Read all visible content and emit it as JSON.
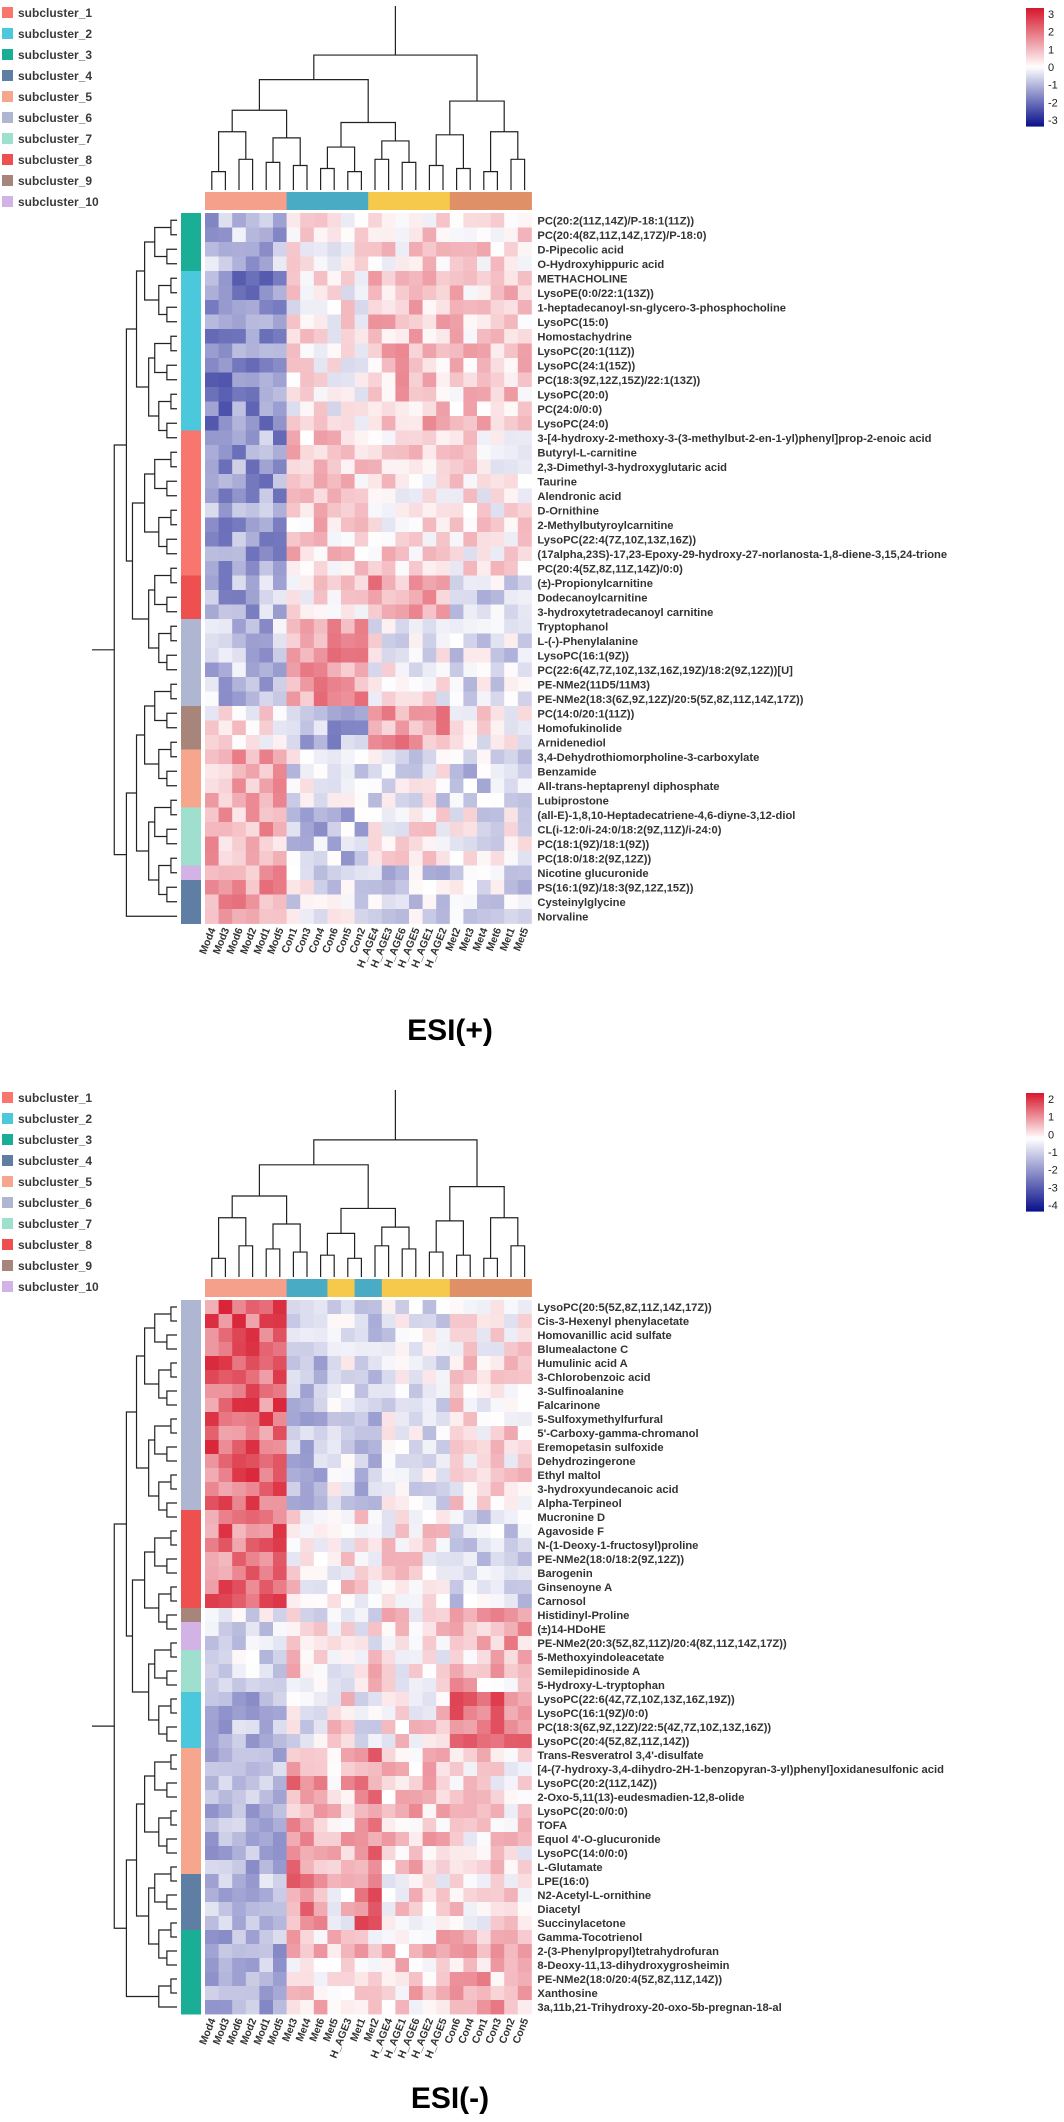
{
  "colors": {
    "subclusters": [
      "#F8766D",
      "#4BC8DB",
      "#1AAE97",
      "#5E7FA3",
      "#F5A68D",
      "#AEB6D2",
      "#9EE0CD",
      "#EE4F4F",
      "#A8857A",
      "#D3B3E6"
    ],
    "groups": [
      "#F5A08A",
      "#4AABC5",
      "#F6C94C",
      "#E09066"
    ],
    "scale_low": "#0B128C",
    "scale_mid": "#FFFFFF",
    "scale_high": "#D7162A"
  },
  "chart_data": [
    {
      "type": "heatmap",
      "title": "ESI(+)",
      "legend": {
        "entries": [
          "subcluster_1",
          "subcluster_2",
          "subcluster_3",
          "subcluster_4",
          "subcluster_5",
          "subcluster_6",
          "subcluster_7",
          "subcluster_8",
          "subcluster_9",
          "subcluster_10"
        ],
        "placement": "top-left"
      },
      "color_scale": {
        "range": [
          -3,
          3
        ],
        "ticks": [
          "3",
          "2",
          "1",
          "0",
          "-1",
          "-2",
          "-3"
        ],
        "placement": "top-right"
      },
      "columns": [
        "Mod4",
        "Mod3",
        "Mod6",
        "Mod2",
        "Mod1",
        "Mod5",
        "Con1",
        "Con3",
        "Con4",
        "Con6",
        "Con5",
        "Con2",
        "H_AGE4",
        "H_AGE3",
        "H_AGE6",
        "H_AGE5",
        "H_AGE1",
        "H_AGE2",
        "Met2",
        "Met3",
        "Met4",
        "Met6",
        "Met1",
        "Met5"
      ],
      "column_groups": [
        0,
        0,
        0,
        0,
        0,
        0,
        1,
        1,
        1,
        1,
        1,
        1,
        2,
        2,
        2,
        2,
        2,
        2,
        3,
        3,
        3,
        3,
        3,
        3
      ],
      "rows": [
        "PC(20:2(11Z,14Z)/P-18:1(11Z))",
        "PC(20:4(8Z,11Z,14Z,17Z)/P-18:0)",
        "D-Pipecolic acid",
        "O-Hydroxyhippuric acid",
        "METHACHOLINE",
        "LysoPE(0:0/22:1(13Z))",
        "1-heptadecanoyl-sn-glycero-3-phosphocholine",
        "LysoPC(15:0)",
        "Homostachydrine",
        "LysoPC(20:1(11Z))",
        "LysoPC(24:1(15Z))",
        "PC(18:3(9Z,12Z,15Z)/22:1(13Z))",
        "LysoPC(20:0)",
        "PC(24:0/0:0)",
        "LysoPC(24:0)",
        "3-[4-hydroxy-2-methoxy-3-(3-methylbut-2-en-1-yl)phenyl]prop-2-enoic acid",
        "Butyryl-L-carnitine",
        "2,3-Dimethyl-3-hydroxyglutaric acid",
        "Taurine",
        "Alendronic acid",
        "D-Ornithine",
        "2-Methylbutyroylcarnitine",
        "LysoPC(22:4(7Z,10Z,13Z,16Z))",
        "(17alpha,23S)-17,23-Epoxy-29-hydroxy-27-norlanosta-1,8-diene-3,15,24-trione",
        "PC(20:4(5Z,8Z,11Z,14Z)/0:0)",
        "(±)-Propionylcarnitine",
        "Dodecanoylcarnitine",
        "3-hydroxytetradecanoyl carnitine",
        "Tryptophanol",
        "L-(-)-Phenylalanine",
        "LysoPC(16:1(9Z))",
        "PC(22:6(4Z,7Z,10Z,13Z,16Z,19Z)/18:2(9Z,12Z))[U]",
        "PE-NMe2(11D5/11M3)",
        "PE-NMe2(18:3(6Z,9Z,12Z)/20:5(5Z,8Z,11Z,14Z,17Z))",
        "PC(14:0/20:1(11Z))",
        "Homofukinolide",
        "Arnidenediol",
        "3,4-Dehydrothiomorpholine-3-carboxylate",
        "Benzamide",
        "All-trans-heptaprenyl diphosphate",
        "Lubiprostone",
        "(all-E)-1,8,10-Heptadecatriene-4,6-diyne-3,12-diol",
        "CL(i-12:0/i-24:0/18:2(9Z,11Z)/i-24:0)",
        "PC(18:1(9Z)/18:1(9Z))",
        "PC(18:0/18:2(9Z,12Z))",
        "Nicotine glucuronide",
        "PS(16:1(9Z)/18:3(9Z,12Z,15Z))",
        "Cysteinylglycine",
        "Norvaline"
      ],
      "row_subclusters": [
        3,
        3,
        3,
        3,
        2,
        2,
        2,
        2,
        2,
        2,
        2,
        2,
        2,
        2,
        2,
        1,
        1,
        1,
        1,
        1,
        1,
        1,
        1,
        1,
        1,
        8,
        8,
        8,
        6,
        6,
        6,
        6,
        6,
        6,
        9,
        9,
        9,
        5,
        5,
        5,
        5,
        7,
        7,
        7,
        7,
        10,
        4,
        4,
        4
      ],
      "row_patterns": [
        [
          -0.8,
          0.2,
          0.4,
          0.5
        ],
        [
          -0.8,
          0.2,
          0.4,
          0.5
        ],
        [
          -0.8,
          0.2,
          0.4,
          0.5
        ],
        [
          -0.8,
          0.2,
          0.4,
          0.5
        ],
        [
          -1.5,
          0.2,
          0.8,
          0.6
        ],
        [
          -1.5,
          0.2,
          0.8,
          0.6
        ],
        [
          -1.5,
          0.2,
          0.8,
          0.6
        ],
        [
          -1.5,
          0.2,
          0.8,
          0.6
        ],
        [
          -1.5,
          0.2,
          0.8,
          0.6
        ],
        [
          -1.5,
          0.2,
          0.8,
          0.6
        ],
        [
          -1.5,
          0.2,
          0.8,
          0.6
        ],
        [
          -1.5,
          0.2,
          0.8,
          0.6
        ],
        [
          -1.5,
          0.2,
          0.8,
          0.6
        ],
        [
          -1.5,
          0.2,
          0.8,
          0.6
        ],
        [
          -1.5,
          0.2,
          0.8,
          0.6
        ],
        [
          -1.2,
          0.6,
          0.4,
          0.3
        ],
        [
          -1.2,
          0.6,
          0.4,
          0.3
        ],
        [
          -1.2,
          0.6,
          0.4,
          0.3
        ],
        [
          -1.2,
          0.6,
          0.4,
          0.3
        ],
        [
          -1.2,
          0.6,
          0.4,
          0.3
        ],
        [
          -1.2,
          0.6,
          0.4,
          0.3
        ],
        [
          -1.2,
          0.6,
          0.4,
          0.3
        ],
        [
          -1.2,
          0.6,
          0.4,
          0.3
        ],
        [
          -1.2,
          0.6,
          0.4,
          0.3
        ],
        [
          -1.2,
          0.6,
          0.4,
          0.3
        ],
        [
          -1.0,
          0.4,
          1.2,
          -0.3
        ],
        [
          -1.0,
          0.4,
          1.2,
          -0.3
        ],
        [
          -1.0,
          0.4,
          1.2,
          -0.3
        ],
        [
          -0.8,
          1.3,
          0.0,
          -0.4
        ],
        [
          -0.8,
          1.3,
          0.0,
          -0.4
        ],
        [
          -0.8,
          1.3,
          0.0,
          -0.4
        ],
        [
          -0.8,
          1.3,
          0.0,
          -0.4
        ],
        [
          -0.8,
          1.3,
          0.0,
          -0.4
        ],
        [
          -0.8,
          1.3,
          0.0,
          -0.4
        ],
        [
          0.3,
          -1.0,
          1.2,
          0.2
        ],
        [
          0.3,
          -1.0,
          1.2,
          0.2
        ],
        [
          0.3,
          -1.0,
          1.2,
          0.2
        ],
        [
          1.0,
          -0.3,
          -0.2,
          -0.6
        ],
        [
          1.0,
          -0.3,
          -0.2,
          -0.6
        ],
        [
          1.0,
          -0.3,
          -0.2,
          -0.6
        ],
        [
          1.0,
          -0.3,
          -0.2,
          -0.6
        ],
        [
          1.0,
          -0.7,
          0.2,
          -0.1
        ],
        [
          1.0,
          -0.7,
          0.2,
          -0.1
        ],
        [
          1.0,
          -0.7,
          0.2,
          -0.1
        ],
        [
          1.0,
          -0.7,
          0.2,
          -0.1
        ],
        [
          1.3,
          -0.2,
          -0.6,
          -0.6
        ],
        [
          1.3,
          -0.2,
          -0.4,
          -0.4
        ],
        [
          1.3,
          -0.2,
          -0.4,
          -0.4
        ],
        [
          1.3,
          -0.2,
          -0.4,
          -0.4
        ]
      ]
    },
    {
      "type": "heatmap",
      "title": "ESI(-)",
      "legend": {
        "entries": [
          "subcluster_1",
          "subcluster_2",
          "subcluster_3",
          "subcluster_4",
          "subcluster_5",
          "subcluster_6",
          "subcluster_7",
          "subcluster_8",
          "subcluster_9",
          "subcluster_10"
        ],
        "placement": "top-left"
      },
      "color_scale": {
        "range": [
          -4,
          2.5
        ],
        "ticks": [
          "2",
          "1",
          "0",
          "-1",
          "-2",
          "-3",
          "-4"
        ],
        "placement": "top-right"
      },
      "columns": [
        "Mod4",
        "Mod3",
        "Mod6",
        "Mod2",
        "Mod1",
        "Mod5",
        "Met3",
        "Met4",
        "Met6",
        "Met5",
        "H_AGE3",
        "Met1",
        "Met2",
        "H_AGE4",
        "H_AGE1",
        "H_AGE6",
        "H_AGE2",
        "H_AGE5",
        "Con6",
        "Con4",
        "Con1",
        "Con3",
        "Con2",
        "Con5"
      ],
      "column_groups": [
        0,
        0,
        0,
        0,
        0,
        0,
        1,
        1,
        1,
        2,
        2,
        1,
        1,
        2,
        2,
        2,
        2,
        2,
        3,
        3,
        3,
        3,
        3,
        3
      ],
      "rows": [
        "LysoPC(20:5(5Z,8Z,11Z,14Z,17Z))",
        "Cis-3-Hexenyl phenylacetate",
        "Homovanillic acid sulfate",
        "Blumealactone C",
        "Humulinic acid A",
        "3-Chlorobenzoic acid",
        "3-Sulfinoalanine",
        "Falcarinone",
        "5-Sulfoxymethylfurfural",
        "5'-Carboxy-gamma-chromanol",
        "Eremopetasin sulfoxide",
        "Dehydrozingerone",
        "Ethyl maltol",
        "3-hydroxyundecanoic acid",
        "Alpha-Terpineol",
        "Mucronine D",
        "Agavoside F",
        "N-(1-Deoxy-1-fructosyl)proline",
        "PE-NMe2(18:0/18:2(9Z,12Z))",
        "Barogenin",
        "Ginsenoyne A",
        "Carnosol",
        "Histidinyl-Proline",
        "(±)14-HDoHE",
        "PE-NMe2(20:3(5Z,8Z,11Z)/20:4(8Z,11Z,14Z,17Z))",
        "5-Methoxyindoleacetate",
        "Semilepidinoside A",
        "5-Hydroxy-L-tryptophan",
        "LysoPC(22:6(4Z,7Z,10Z,13Z,16Z,19Z))",
        "LysoPC(16:1(9Z)/0:0)",
        "PC(18:3(6Z,9Z,12Z)/22:5(4Z,7Z,10Z,13Z,16Z))",
        "LysoPC(20:4(5Z,8Z,11Z,14Z))",
        "Trans-Resveratrol 3,4'-disulfate",
        "[4-(7-hydroxy-3,4-dihydro-2H-1-benzopyran-3-yl)phenyl]oxidanesulfonic acid",
        "LysoPC(20:2(11Z,14Z))",
        "2-Oxo-5,11(13)-eudesmadien-12,8-olide",
        "LysoPC(20:0/0:0)",
        "TOFA",
        "Equol 4'-O-glucuronide",
        "LysoPC(14:0/0:0)",
        "L-Glutamate",
        "LPE(16:0)",
        "N2-Acetyl-L-ornithine",
        "Diacetyl",
        "Succinylacetone",
        "Gamma-Tocotrienol",
        "2-(3-Phenylpropyl)tetrahydrofuran",
        "8-Deoxy-11,13-dihydroxygrosheimin",
        "PE-NMe2(18:0/20:4(5Z,8Z,11Z,14Z))",
        "Xanthosine",
        "3a,11b,21-Trihydroxy-20-oxo-5b-pregnan-18-al"
      ],
      "row_subclusters": [
        6,
        6,
        6,
        6,
        6,
        6,
        6,
        6,
        6,
        6,
        6,
        6,
        6,
        6,
        6,
        8,
        8,
        8,
        8,
        8,
        8,
        8,
        9,
        10,
        10,
        7,
        7,
        7,
        2,
        2,
        2,
        2,
        5,
        5,
        5,
        5,
        5,
        5,
        5,
        5,
        5,
        4,
        4,
        4,
        4,
        3,
        3,
        3,
        3,
        3,
        3
      ],
      "row_patterns": [
        [
          1.6,
          -1.0,
          -0.4,
          0.2
        ],
        [
          1.6,
          -1.0,
          -0.4,
          0.2
        ],
        [
          1.6,
          -1.0,
          -0.4,
          0.2
        ],
        [
          1.6,
          -1.0,
          -0.4,
          0.2
        ],
        [
          1.6,
          -1.0,
          -0.4,
          0.2
        ],
        [
          1.6,
          -1.0,
          -0.4,
          0.2
        ],
        [
          1.6,
          -1.0,
          -0.4,
          0.2
        ],
        [
          1.6,
          -1.0,
          -0.4,
          0.2
        ],
        [
          1.6,
          -1.0,
          -0.4,
          0.2
        ],
        [
          1.6,
          -1.0,
          -0.4,
          0.2
        ],
        [
          1.6,
          -1.0,
          -0.4,
          0.2
        ],
        [
          1.6,
          -1.0,
          -0.4,
          0.2
        ],
        [
          1.6,
          -1.0,
          -0.4,
          0.2
        ],
        [
          1.6,
          -1.0,
          -0.4,
          0.2
        ],
        [
          1.6,
          -1.0,
          -0.4,
          0.2
        ],
        [
          1.5,
          0.2,
          0.2,
          -0.6
        ],
        [
          1.5,
          0.2,
          0.2,
          -0.6
        ],
        [
          1.5,
          0.2,
          0.2,
          -0.6
        ],
        [
          1.5,
          0.2,
          0.2,
          -0.6
        ],
        [
          1.5,
          0.2,
          0.2,
          -0.6
        ],
        [
          1.5,
          0.2,
          0.2,
          -0.6
        ],
        [
          1.5,
          0.2,
          0.2,
          -0.6
        ],
        [
          -0.4,
          -0.2,
          0.3,
          0.8
        ],
        [
          -0.5,
          0.0,
          0.3,
          0.9
        ],
        [
          -0.5,
          0.0,
          0.3,
          0.9
        ],
        [
          -0.6,
          0.4,
          0.1,
          0.6
        ],
        [
          -0.6,
          0.4,
          0.1,
          0.6
        ],
        [
          -0.6,
          0.4,
          0.1,
          0.6
        ],
        [
          -1.2,
          -0.3,
          0.2,
          1.4
        ],
        [
          -1.2,
          -0.3,
          0.2,
          1.4
        ],
        [
          -1.2,
          -0.3,
          0.2,
          1.4
        ],
        [
          -1.2,
          -0.3,
          0.2,
          1.4
        ],
        [
          -1.2,
          1.1,
          0.6,
          0.2
        ],
        [
          -1.2,
          1.1,
          0.6,
          0.2
        ],
        [
          -1.2,
          1.1,
          0.6,
          0.2
        ],
        [
          -1.2,
          1.1,
          0.6,
          0.2
        ],
        [
          -1.2,
          1.1,
          0.6,
          0.2
        ],
        [
          -1.2,
          1.1,
          0.6,
          0.2
        ],
        [
          -1.2,
          1.1,
          0.6,
          0.2
        ],
        [
          -1.2,
          1.1,
          0.6,
          0.2
        ],
        [
          -1.2,
          1.1,
          0.6,
          0.2
        ],
        [
          -1.1,
          1.3,
          0.2,
          0.2
        ],
        [
          -1.1,
          1.3,
          0.2,
          0.2
        ],
        [
          -1.1,
          1.3,
          0.2,
          0.2
        ],
        [
          -1.1,
          1.3,
          0.2,
          0.2
        ],
        [
          -1.3,
          0.5,
          0.5,
          0.8
        ],
        [
          -1.3,
          0.5,
          0.5,
          0.8
        ],
        [
          -1.3,
          0.5,
          0.5,
          0.8
        ],
        [
          -1.3,
          0.5,
          0.5,
          0.8
        ],
        [
          -1.3,
          0.5,
          0.5,
          0.8
        ],
        [
          -1.3,
          0.5,
          0.5,
          0.8
        ]
      ]
    }
  ]
}
